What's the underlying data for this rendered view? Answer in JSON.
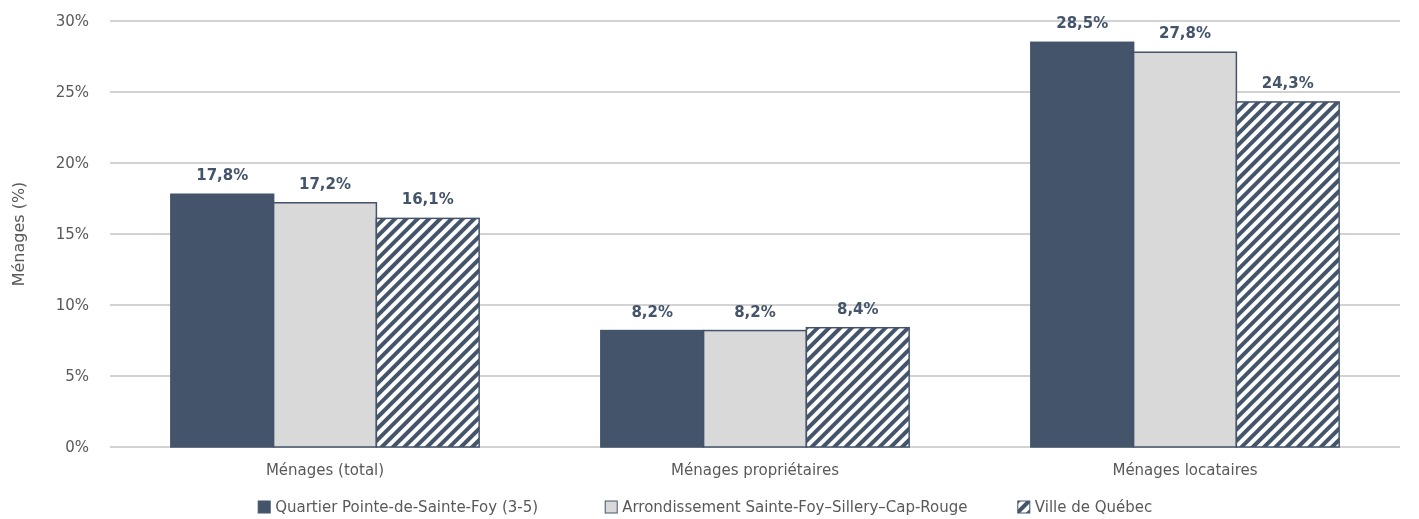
{
  "chart_data": {
    "type": "bar",
    "ylabel": "Ménages (%)",
    "categories": [
      "Ménages (total)",
      "Ménages propriétaires",
      "Ménages locataires"
    ],
    "series": [
      {
        "name": "Quartier Pointe-de-Sainte-Foy (3-5)",
        "color": "#44546a",
        "values": [
          17.8,
          8.2,
          28.5
        ],
        "value_labels": [
          "17,8%",
          "8,2%",
          "28,5%"
        ]
      },
      {
        "name": "Arrondissement Sainte-Foy–Sillery–Cap-Rouge",
        "color": "#d9d9d9",
        "values": [
          17.2,
          8.2,
          27.8
        ],
        "value_labels": [
          "17,2%",
          "8,2%",
          "27,8%"
        ]
      },
      {
        "name": "Ville de Québec",
        "color": "#44546a",
        "values": [
          16.1,
          8.4,
          24.3
        ],
        "value_labels": [
          "16,1%",
          "8,4%",
          "24,3%"
        ]
      }
    ],
    "ylim": [
      0,
      30
    ],
    "yticks": [
      {
        "value": 0,
        "label": "0%"
      },
      {
        "value": 5,
        "label": "5%"
      },
      {
        "value": 10,
        "label": "10%"
      },
      {
        "value": 15,
        "label": "15%"
      },
      {
        "value": 20,
        "label": "20%"
      },
      {
        "value": 25,
        "label": "25%"
      },
      {
        "value": 30,
        "label": "30%"
      }
    ],
    "grid": "y",
    "legend": "bottom"
  }
}
